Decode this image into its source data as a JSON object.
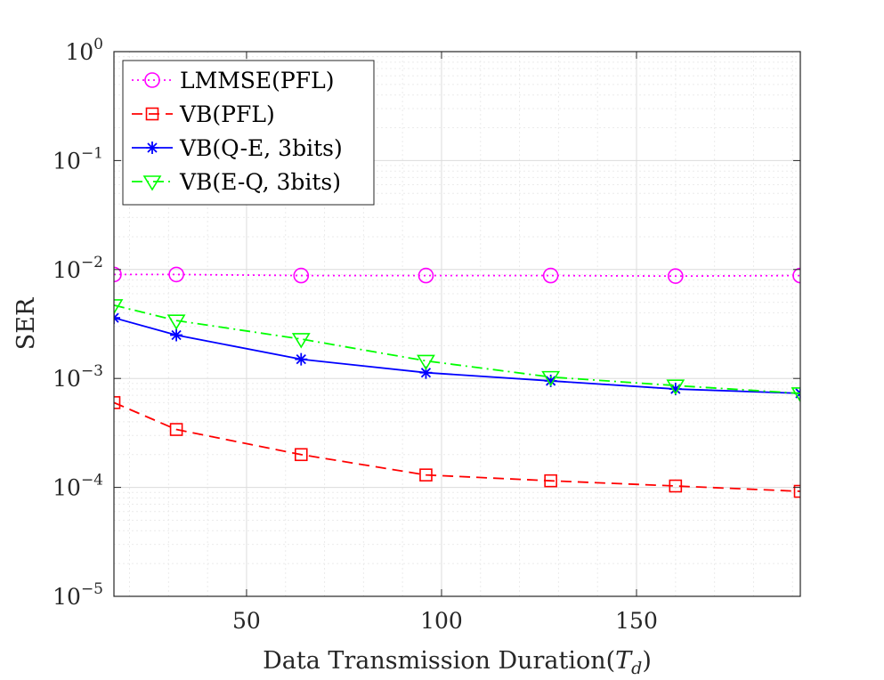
{
  "chart_data": {
    "type": "line",
    "title": "",
    "xlabel": "Data Transmission Duration",
    "xlabel_symbol": "T",
    "xlabel_subscript": "d",
    "ylabel": "SER",
    "yscale": "log",
    "xlim": [
      16,
      192
    ],
    "ylim": [
      1e-05,
      1
    ],
    "grid": true,
    "legend_position": "top-left",
    "xticks": [
      50,
      100,
      150
    ],
    "xtick_labels": [
      "50",
      "100",
      "150"
    ],
    "yticks": [
      1e-05,
      0.0001,
      0.001,
      0.01,
      0.1,
      1
    ],
    "ytick_bases": [
      "10",
      "10",
      "10",
      "10",
      "10",
      "10"
    ],
    "ytick_exponents": [
      "−5",
      "−4",
      "−3",
      "−2",
      "−1",
      "0"
    ],
    "x": [
      16,
      32,
      64,
      96,
      128,
      160,
      192
    ],
    "series": [
      {
        "name": "LMMSE(PFL)",
        "color": "#ff00ff",
        "line": "dotted",
        "marker": "circle",
        "values": [
          0.009,
          0.009,
          0.0088,
          0.0088,
          0.0088,
          0.0087,
          0.0088
        ]
      },
      {
        "name": "VB(PFL)",
        "color": "#ff0000",
        "line": "dashed",
        "marker": "square",
        "values": [
          0.0006,
          0.00034,
          0.0002,
          0.00013,
          0.000115,
          0.000103,
          9.2e-05
        ]
      },
      {
        "name": "VB(Q-E, 3bits)",
        "color": "#0000ff",
        "line": "solid",
        "marker": "asterisk",
        "values": [
          0.0036,
          0.0025,
          0.0015,
          0.00113,
          0.00095,
          0.0008,
          0.00073
        ]
      },
      {
        "name": "VB(E-Q, 3bits)",
        "color": "#00ff00",
        "line": "dashdot",
        "marker": "triangle-down",
        "values": [
          0.0047,
          0.0034,
          0.0023,
          0.00145,
          0.00103,
          0.00086,
          0.00073
        ]
      }
    ]
  }
}
